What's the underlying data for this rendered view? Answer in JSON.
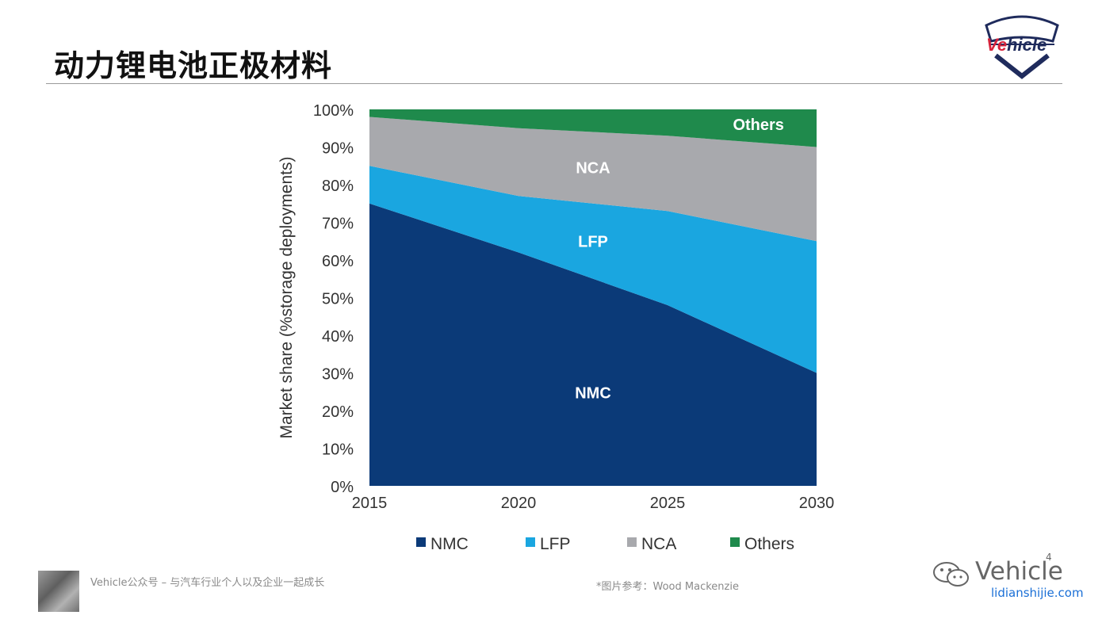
{
  "slide": {
    "title": "动力锂电池正极材料",
    "logo_text_ve": "Ve",
    "logo_text_rest": "hicle",
    "footer_left": "Vehicle公众号 – 与汽车行业个人以及企业一起成长",
    "footer_source": "*图片参考：Wood Mackenzie",
    "watermark_text": "Vehicle",
    "watermark_url": "lidianshijie.com",
    "page_number": "4"
  },
  "colors": {
    "NMC": "#0b3a78",
    "LFP": "#1aa6e0",
    "NCA": "#a8a9ad",
    "Others": "#1f8a4c"
  },
  "chart_data": {
    "type": "area",
    "stacked": true,
    "x": [
      2015,
      2020,
      2025,
      2030
    ],
    "x_tick_labels": [
      "2015",
      "2020",
      "2025",
      "2030"
    ],
    "ylabel": "Market share (%storage deployments)",
    "ylim": [
      0,
      100
    ],
    "y_tick_labels": [
      "0%",
      "10%",
      "20%",
      "30%",
      "40%",
      "50%",
      "60%",
      "70%",
      "80%",
      "90%",
      "100%"
    ],
    "series": [
      {
        "name": "NMC",
        "values": [
          75,
          62,
          48,
          30
        ]
      },
      {
        "name": "LFP",
        "values": [
          10,
          15,
          25,
          35
        ]
      },
      {
        "name": "NCA",
        "values": [
          13,
          18,
          20,
          25
        ]
      },
      {
        "name": "Others",
        "values": [
          2,
          5,
          7,
          10
        ]
      }
    ],
    "area_labels": [
      "NMC",
      "LFP",
      "NCA",
      "Others"
    ],
    "legend": [
      "NMC",
      "LFP",
      "NCA",
      "Others"
    ],
    "legend_position": "bottom"
  }
}
